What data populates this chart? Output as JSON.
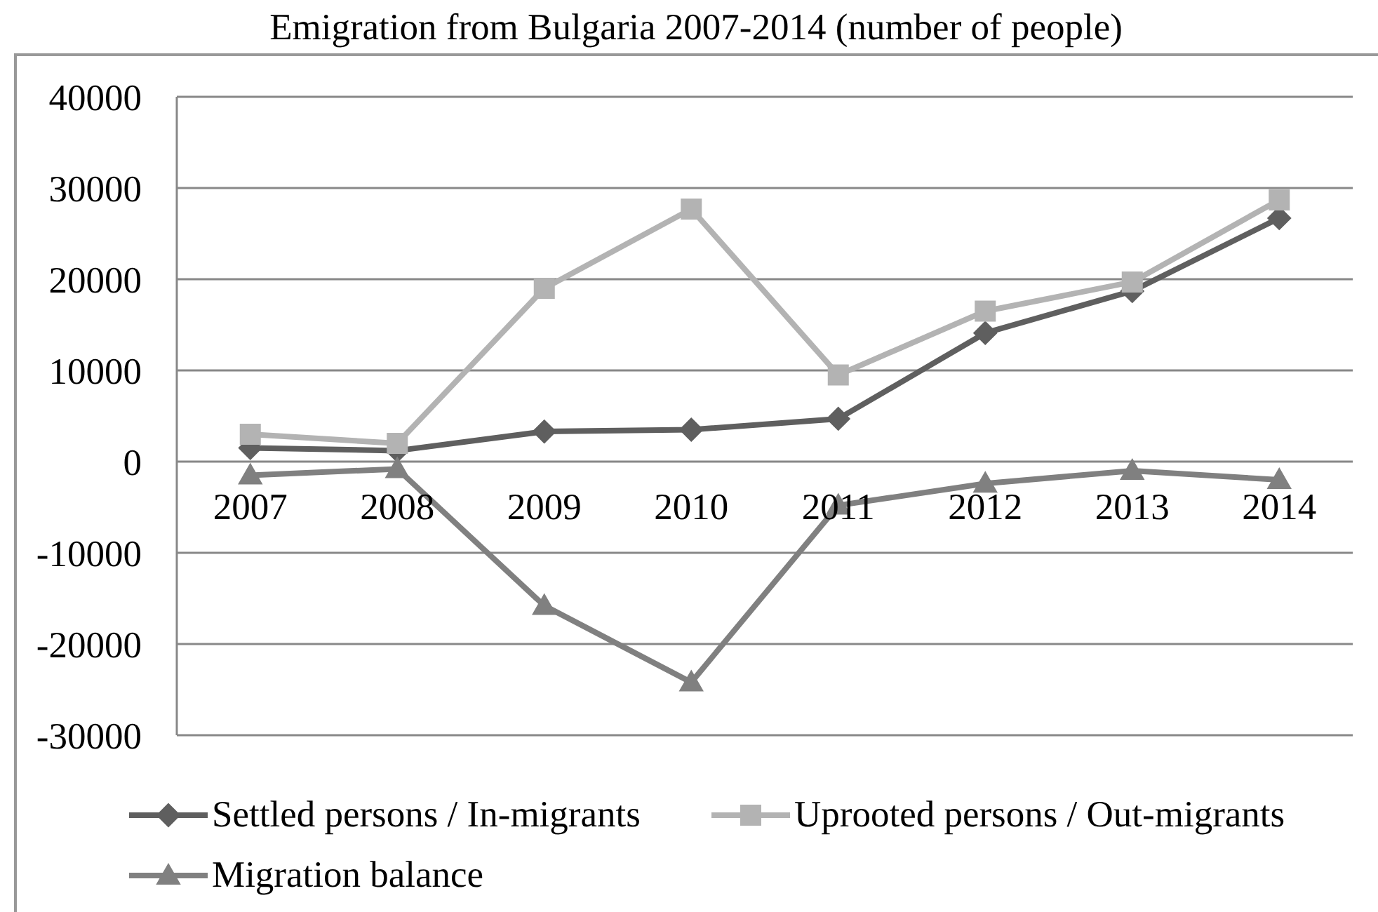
{
  "chart_data": {
    "type": "line",
    "title": "Emigration from Bulgaria 2007-2014 (number of people)",
    "categories": [
      "2007",
      "2008",
      "2009",
      "2010",
      "2011",
      "2012",
      "2013",
      "2014"
    ],
    "series": [
      {
        "name": "Settled persons / In-migrants",
        "color": "#5f5f5f",
        "marker": "diamond",
        "values": [
          1500,
          1200,
          3300,
          3500,
          4700,
          14100,
          18700,
          26700
        ]
      },
      {
        "name": "Uprooted persons / Out-migrants",
        "color": "#b3b3b3",
        "marker": "square",
        "values": [
          3000,
          2000,
          19000,
          27700,
          9500,
          16500,
          19700,
          28700
        ]
      },
      {
        "name": "Migration balance",
        "color": "#808080",
        "marker": "triangle",
        "values": [
          -1500,
          -800,
          -15800,
          -24200,
          -4800,
          -2400,
          -1000,
          -2000
        ]
      }
    ],
    "ylim": [
      -30000,
      40000
    ],
    "yticks": [
      -30000,
      -20000,
      -10000,
      0,
      10000,
      20000,
      30000,
      40000
    ],
    "grid": "y",
    "legend": "bottom",
    "line_style": "solid"
  }
}
